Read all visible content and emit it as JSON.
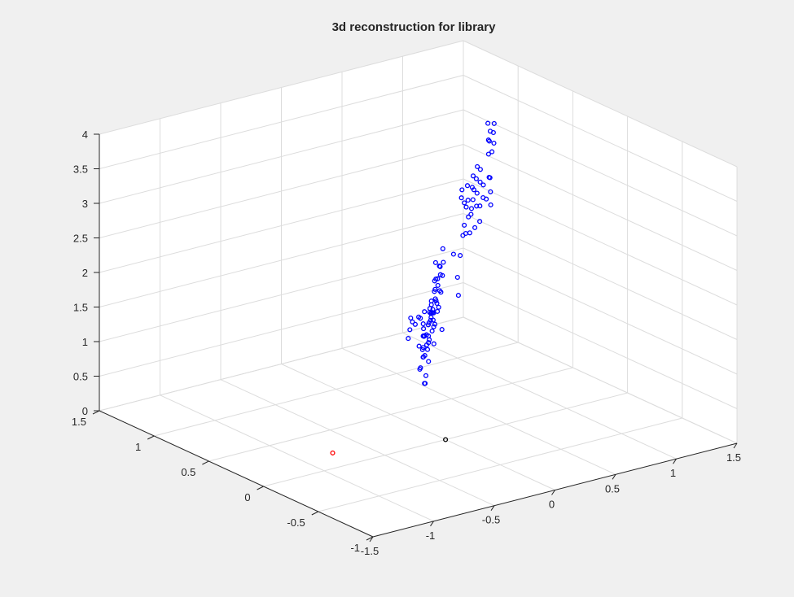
{
  "chart_data": {
    "type": "scatter3d",
    "title": "3d reconstruction for library",
    "grid": true,
    "axes": {
      "x": {
        "range": [
          -1.5,
          1.5
        ],
        "ticks": [
          -1.5,
          -1,
          -0.5,
          0,
          0.5,
          1,
          1.5
        ],
        "tick_labels": [
          "-1.5",
          "-1",
          "-0.5",
          "0",
          "0.5",
          "1",
          "1.5"
        ]
      },
      "y": {
        "range": [
          -1,
          1.5
        ],
        "ticks": [
          -1,
          -0.5,
          0,
          0.5,
          1,
          1.5
        ],
        "tick_labels": [
          "-1",
          "-0.5",
          "0",
          "0.5",
          "1",
          "1.5"
        ]
      },
      "z": {
        "range": [
          0,
          4
        ],
        "ticks": [
          0,
          0.5,
          1,
          1.5,
          2,
          2.5,
          3,
          3.5,
          4
        ],
        "tick_labels": [
          "0",
          "0.5",
          "1",
          "1.5",
          "2",
          "2.5",
          "3",
          "3.5",
          "4"
        ]
      }
    },
    "series": [
      {
        "color": "#0000ff",
        "marker": "circle",
        "points": [
          [
            -0.6,
            -0.42,
            2.35
          ],
          [
            -0.55,
            -0.38,
            2.28
          ],
          [
            -0.57,
            -0.33,
            2.2
          ],
          [
            -0.49,
            -0.4,
            2.41
          ],
          [
            -0.44,
            -0.36,
            2.3
          ],
          [
            -0.52,
            -0.3,
            2.12
          ],
          [
            -0.59,
            -0.45,
            2.27
          ],
          [
            -0.47,
            -0.32,
            2.05
          ],
          [
            -0.63,
            -0.38,
            2.32
          ],
          [
            -0.45,
            -0.42,
            2.48
          ],
          [
            -0.5,
            -0.35,
            1.98
          ],
          [
            -0.56,
            -0.28,
            1.92
          ],
          [
            -0.58,
            -0.45,
            2.44
          ],
          [
            -0.52,
            -0.42,
            2.04
          ],
          [
            -0.43,
            -0.37,
            1.85
          ],
          [
            -0.61,
            -0.35,
            2.12
          ],
          [
            -0.48,
            -0.29,
            1.78
          ],
          [
            -0.55,
            -0.48,
            2.55
          ],
          [
            -0.4,
            -0.33,
            2.15
          ],
          [
            -0.32,
            -0.12,
            1.25
          ],
          [
            -0.26,
            -0.06,
            1.2
          ],
          [
            -0.2,
            -0.02,
            1.3
          ],
          [
            -0.14,
            0.05,
            1.22
          ],
          [
            -0.08,
            0.1,
            1.18
          ],
          [
            -0.02,
            0.15,
            1.27
          ],
          [
            0.04,
            0.2,
            1.24
          ],
          [
            0.1,
            0.26,
            1.21
          ],
          [
            0.16,
            0.3,
            1.28
          ],
          [
            -0.28,
            -0.1,
            1.5
          ],
          [
            -0.22,
            -0.04,
            1.46
          ],
          [
            -0.16,
            0.02,
            1.55
          ],
          [
            -0.1,
            0.08,
            1.49
          ],
          [
            -0.04,
            0.13,
            1.44
          ],
          [
            0.02,
            0.18,
            1.52
          ],
          [
            0.08,
            0.24,
            1.48
          ],
          [
            0.14,
            0.29,
            1.55
          ],
          [
            0.2,
            0.34,
            1.5
          ],
          [
            -0.3,
            -0.14,
            1.05
          ],
          [
            -0.24,
            -0.08,
            0.98
          ],
          [
            -0.18,
            -0.02,
            1.02
          ],
          [
            -0.05,
            0.1,
            1.08
          ],
          [
            0.05,
            0.22,
            1.12
          ],
          [
            0.22,
            0.38,
            1.35
          ],
          [
            -0.3,
            -0.2,
            2.05
          ],
          [
            -0.24,
            -0.15,
            2.1
          ],
          [
            -0.18,
            -0.09,
            1.98
          ],
          [
            -0.12,
            -0.04,
            2.12
          ],
          [
            -0.06,
            0.02,
            2.02
          ],
          [
            0.0,
            0.07,
            2.18
          ],
          [
            0.06,
            0.12,
            2.04
          ],
          [
            0.12,
            0.18,
            2.2
          ],
          [
            -0.27,
            -0.17,
            2.25
          ],
          [
            -0.2,
            -0.12,
            2.32
          ],
          [
            -0.14,
            -0.06,
            2.28
          ],
          [
            -0.08,
            0.0,
            2.36
          ],
          [
            -0.02,
            0.05,
            2.3
          ],
          [
            0.04,
            0.1,
            2.42
          ],
          [
            0.1,
            0.16,
            2.34
          ],
          [
            -0.26,
            -0.18,
            1.88
          ],
          [
            -0.16,
            -0.08,
            1.8
          ],
          [
            -0.04,
            0.03,
            1.85
          ],
          [
            0.07,
            0.14,
            1.78
          ],
          [
            0.16,
            0.22,
            1.9
          ],
          [
            0.0,
            0.02,
            2.55
          ],
          [
            -0.1,
            -0.02,
            2.62
          ],
          [
            0.05,
            0.08,
            2.68
          ],
          [
            -0.18,
            -0.1,
            2.45
          ],
          [
            0.2,
            0.25,
            2.1
          ],
          [
            -0.33,
            -0.22,
            2.15
          ],
          [
            -0.12,
            -0.1,
            1.72
          ],
          [
            -0.18,
            -0.35,
            3.95
          ],
          [
            -0.14,
            -0.3,
            3.78
          ],
          [
            -0.08,
            -0.26,
            3.65
          ],
          [
            0.0,
            -0.2,
            3.82
          ],
          [
            -0.1,
            -0.32,
            3.5
          ],
          [
            -0.2,
            -0.38,
            3.32
          ],
          [
            -0.25,
            -0.35,
            3.05
          ],
          [
            0.05,
            -0.15,
            3.55
          ],
          [
            -0.05,
            -0.24,
            3.18
          ],
          [
            -0.28,
            -0.42,
            2.78
          ],
          [
            0.08,
            -0.1,
            3.4
          ],
          [
            0.1,
            -0.06,
            3.1
          ],
          [
            -0.15,
            -0.3,
            2.95
          ],
          [
            -0.3,
            -0.45,
            2.55
          ],
          [
            0.22,
            0.0,
            3.55
          ],
          [
            0.3,
            0.08,
            3.62
          ],
          [
            0.38,
            0.14,
            3.5
          ],
          [
            0.46,
            0.22,
            3.58
          ],
          [
            0.54,
            0.28,
            3.46
          ],
          [
            0.28,
            0.06,
            3.3
          ],
          [
            0.36,
            0.14,
            3.35
          ],
          [
            0.44,
            0.2,
            3.22
          ],
          [
            0.52,
            0.26,
            3.3
          ],
          [
            0.6,
            0.32,
            3.18
          ],
          [
            0.3,
            0.1,
            3.05
          ],
          [
            0.4,
            0.16,
            3.08
          ],
          [
            0.5,
            0.24,
            2.98
          ],
          [
            0.58,
            0.3,
            3.02
          ],
          [
            0.66,
            0.36,
            2.92
          ],
          [
            0.2,
            0.0,
            2.9
          ],
          [
            0.35,
            0.12,
            2.82
          ],
          [
            0.48,
            0.22,
            2.78
          ],
          [
            0.25,
            0.04,
            3.2
          ],
          [
            0.85,
            0.55,
            3.55
          ],
          [
            0.92,
            0.62,
            3.45
          ],
          [
            1.0,
            0.7,
            3.5
          ],
          [
            1.08,
            0.76,
            3.4
          ],
          [
            1.14,
            0.82,
            3.46
          ],
          [
            0.95,
            0.66,
            3.22
          ],
          [
            1.05,
            0.74,
            3.15
          ],
          [
            1.12,
            0.8,
            3.2
          ],
          [
            0.9,
            0.6,
            2.95
          ],
          [
            0.98,
            0.68,
            2.85
          ],
          [
            1.02,
            0.72,
            2.6
          ],
          [
            0.8,
            0.5,
            3.85
          ],
          [
            0.95,
            0.64,
            2.5
          ]
        ]
      },
      {
        "color": "#ff0000",
        "marker": "circle",
        "points": [
          [
            -0.75,
            0.2,
            0
          ]
        ]
      },
      {
        "color": "#000000",
        "marker": "circle",
        "points": [
          [
            0,
            0,
            0
          ]
        ]
      }
    ]
  }
}
